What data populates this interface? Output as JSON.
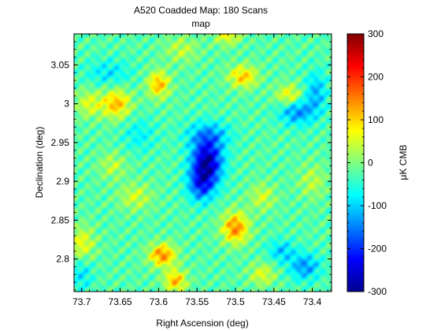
{
  "chart_data": {
    "type": "heatmap",
    "title": "A520 Coadded Map: 180 Scans",
    "subtitle": "map",
    "xlabel": "Right Ascension (deg)",
    "ylabel": "Declination (deg)",
    "colorbar_label": "μK CMB",
    "colormap": "jet",
    "xlim": [
      73.71,
      73.375
    ],
    "ylim": [
      2.758,
      3.09
    ],
    "clim": [
      -300,
      300
    ],
    "x_ticks": [
      {
        "value": 73.7,
        "label": "73.7"
      },
      {
        "value": 73.65,
        "label": "73.65"
      },
      {
        "value": 73.6,
        "label": "73.6"
      },
      {
        "value": 73.55,
        "label": "73.55"
      },
      {
        "value": 73.5,
        "label": "73.5"
      },
      {
        "value": 73.45,
        "label": "73.45"
      },
      {
        "value": 73.4,
        "label": "73.4"
      }
    ],
    "y_ticks": [
      {
        "value": 3.05,
        "label": "3.05"
      },
      {
        "value": 3.0,
        "label": "3"
      },
      {
        "value": 2.95,
        "label": "2.95"
      },
      {
        "value": 2.9,
        "label": "2.9"
      },
      {
        "value": 2.85,
        "label": "2.85"
      },
      {
        "value": 2.8,
        "label": "2.8"
      }
    ],
    "colorbar_ticks": [
      {
        "value": 300,
        "label": "300"
      },
      {
        "value": 200,
        "label": "200"
      },
      {
        "value": 100,
        "label": "100"
      },
      {
        "value": 0,
        "label": "0"
      },
      {
        "value": -100,
        "label": "-100"
      },
      {
        "value": -200,
        "label": "-200"
      },
      {
        "value": -300,
        "label": "-300"
      }
    ],
    "background_level": -25,
    "features": [
      {
        "ra": 73.537,
        "dec": 2.925,
        "amplitude": -250,
        "sigma_ra": 0.014,
        "sigma_dec": 0.02
      },
      {
        "ra": 73.545,
        "dec": 2.895,
        "amplitude": -140,
        "sigma_ra": 0.012,
        "sigma_dec": 0.015
      },
      {
        "ra": 73.535,
        "dec": 2.96,
        "amplitude": -90,
        "sigma_ra": 0.02,
        "sigma_dec": 0.012
      },
      {
        "ra": 73.42,
        "dec": 2.99,
        "amplitude": -120,
        "sigma_ra": 0.016,
        "sigma_dec": 0.012
      },
      {
        "ra": 73.395,
        "dec": 3.015,
        "amplitude": -90,
        "sigma_ra": 0.01,
        "sigma_dec": 0.018
      },
      {
        "ra": 73.41,
        "dec": 2.79,
        "amplitude": -110,
        "sigma_ra": 0.014,
        "sigma_dec": 0.012
      },
      {
        "ra": 73.44,
        "dec": 2.81,
        "amplitude": -80,
        "sigma_ra": 0.012,
        "sigma_dec": 0.01
      },
      {
        "ra": 73.665,
        "dec": 3.04,
        "amplitude": -60,
        "sigma_ra": 0.02,
        "sigma_dec": 0.012
      },
      {
        "ra": 73.7,
        "dec": 2.78,
        "amplitude": -60,
        "sigma_ra": 0.01,
        "sigma_dec": 0.015
      },
      {
        "ra": 73.625,
        "dec": 2.96,
        "amplitude": -50,
        "sigma_ra": 0.015,
        "sigma_dec": 0.015
      },
      {
        "ra": 73.5,
        "dec": 2.84,
        "amplitude": 170,
        "sigma_ra": 0.012,
        "sigma_dec": 0.014
      },
      {
        "ra": 73.595,
        "dec": 2.805,
        "amplitude": 170,
        "sigma_ra": 0.012,
        "sigma_dec": 0.01
      },
      {
        "ra": 73.578,
        "dec": 2.772,
        "amplitude": 140,
        "sigma_ra": 0.01,
        "sigma_dec": 0.01
      },
      {
        "ra": 73.655,
        "dec": 3.0,
        "amplitude": 140,
        "sigma_ra": 0.013,
        "sigma_dec": 0.013
      },
      {
        "ra": 73.6,
        "dec": 3.025,
        "amplitude": 140,
        "sigma_ra": 0.01,
        "sigma_dec": 0.012
      },
      {
        "ra": 73.49,
        "dec": 3.035,
        "amplitude": 130,
        "sigma_ra": 0.013,
        "sigma_dec": 0.01
      },
      {
        "ra": 73.43,
        "dec": 3.01,
        "amplitude": 110,
        "sigma_ra": 0.012,
        "sigma_dec": 0.01
      },
      {
        "ra": 73.7,
        "dec": 2.82,
        "amplitude": 90,
        "sigma_ra": 0.012,
        "sigma_dec": 0.015
      },
      {
        "ra": 73.51,
        "dec": 3.09,
        "amplitude": 100,
        "sigma_ra": 0.012,
        "sigma_dec": 0.01
      },
      {
        "ra": 73.69,
        "dec": 3.0,
        "amplitude": 80,
        "sigma_ra": 0.012,
        "sigma_dec": 0.012
      },
      {
        "ra": 73.465,
        "dec": 2.78,
        "amplitude": 80,
        "sigma_ra": 0.012,
        "sigma_dec": 0.01
      },
      {
        "ra": 73.465,
        "dec": 2.88,
        "amplitude": 70,
        "sigma_ra": 0.012,
        "sigma_dec": 0.012
      },
      {
        "ra": 73.63,
        "dec": 2.88,
        "amplitude": 70,
        "sigma_ra": 0.015,
        "sigma_dec": 0.012
      },
      {
        "ra": 73.57,
        "dec": 3.07,
        "amplitude": 60,
        "sigma_ra": 0.015,
        "sigma_dec": 0.012
      },
      {
        "ra": 73.4,
        "dec": 2.9,
        "amplitude": 60,
        "sigma_ra": 0.012,
        "sigma_dec": 0.015
      },
      {
        "ra": 73.66,
        "dec": 2.92,
        "amplitude": 60,
        "sigma_ra": 0.012,
        "sigma_dec": 0.012
      }
    ]
  }
}
